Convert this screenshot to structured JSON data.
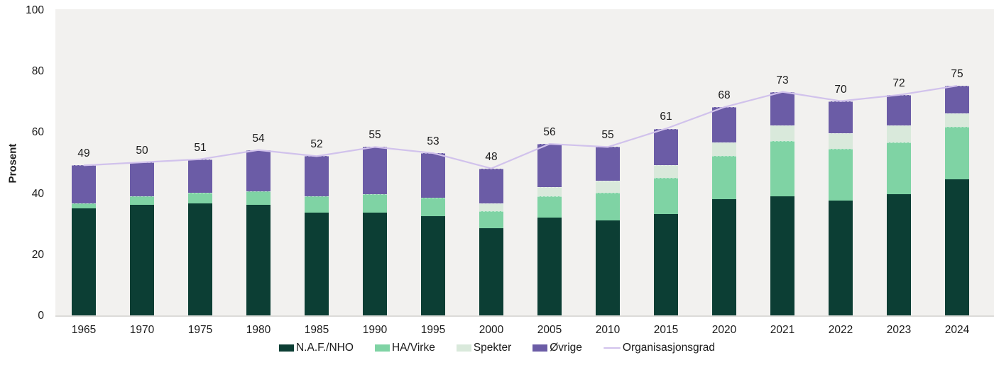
{
  "y_axis": {
    "title": "Prosent",
    "ticks": [
      0,
      20,
      40,
      60,
      80,
      100
    ]
  },
  "legend": {
    "items": [
      {
        "label": "N.A.F./NHO",
        "type": "box",
        "color": "#0c3e34"
      },
      {
        "label": "HA/Virke",
        "type": "box",
        "color": "#7fd3a4"
      },
      {
        "label": "Spekter",
        "type": "box",
        "color": "#d9e9db"
      },
      {
        "label": "Øvrige",
        "type": "box",
        "color": "#6b5ca6"
      },
      {
        "label": "Organisasjonsgrad",
        "type": "line",
        "color": "#d1c2ec"
      }
    ]
  },
  "colors": {
    "plot_background": "#f2f1ef",
    "axis_line": "#dcdbd8",
    "text": "#1b1b1b",
    "trend_line": "#d1c2ec"
  },
  "chart_data": {
    "type": "bar",
    "subtype": "stacked-bar-with-line",
    "title": "",
    "xlabel": "",
    "ylabel": "Prosent",
    "ylim": [
      0,
      100
    ],
    "grid": false,
    "legend_position": "bottom",
    "categories": [
      "1965",
      "1970",
      "1975",
      "1980",
      "1985",
      "1990",
      "1995",
      "2000",
      "2005",
      "2010",
      "2015",
      "2020",
      "2021",
      "2022",
      "2023",
      "2024"
    ],
    "series": [
      {
        "name": "N.A.F./NHO",
        "color": "#0c3e34",
        "values": [
          35,
          36,
          36.5,
          36,
          33.5,
          33.5,
          32.5,
          28.5,
          32,
          31,
          33,
          38,
          39,
          37.5,
          39.5,
          44.5
        ]
      },
      {
        "name": "HA/Virke",
        "color": "#7fd3a4",
        "values": [
          1.5,
          3,
          3.5,
          4.5,
          5.5,
          6,
          6,
          5.5,
          7,
          9,
          12,
          14,
          18,
          17,
          17,
          17
        ]
      },
      {
        "name": "Spekter",
        "color": "#d9e9db",
        "values": [
          0,
          0,
          0,
          0,
          0,
          0,
          0,
          2.5,
          3,
          4,
          4,
          4.5,
          5,
          5,
          5.5,
          4.5
        ]
      },
      {
        "name": "Øvrige",
        "color": "#6b5ca6",
        "values": [
          12.5,
          11,
          11,
          13.5,
          13,
          15.5,
          14.5,
          11.5,
          14,
          11,
          12,
          11.5,
          11,
          10.5,
          10,
          9
        ]
      }
    ],
    "line_series": {
      "name": "Organisasjonsgrad",
      "color": "#d1c2ec",
      "values": [
        49,
        50,
        51,
        54,
        52,
        55,
        53,
        48,
        56,
        55,
        61,
        68,
        73,
        70,
        72,
        75
      ]
    },
    "bar_total_labels": [
      49,
      50,
      51,
      54,
      52,
      55,
      53,
      48,
      56,
      55,
      61,
      68,
      73,
      70,
      72,
      75
    ]
  }
}
